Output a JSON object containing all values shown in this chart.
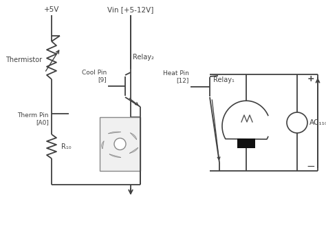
{
  "bg_color": "#ffffff",
  "line_color": "#404040",
  "labels": {
    "plus5v": "+5V",
    "vin": "Vin [+5-12V]",
    "relay2": "Relay₂",
    "cool_pin": "Cool Pin\n[9]",
    "relay1": "Relay₁",
    "heat_pin": "Heat Pin\n[12]",
    "therm_pin": "Therm Pin\n[A0]",
    "thermistor": "Thermistor",
    "r10": "R₁₀",
    "ac110": "AC₁₁₀"
  },
  "fan_image_color": "#aaaaaa",
  "ground_arrow": true
}
